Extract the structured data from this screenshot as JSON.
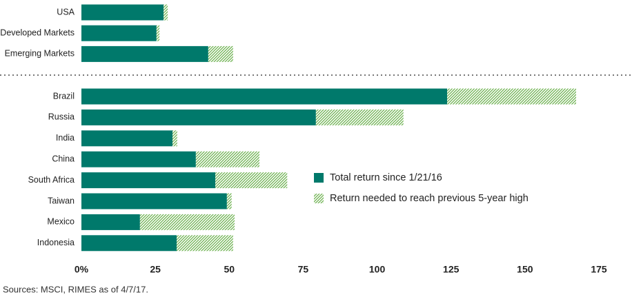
{
  "chart_data": {
    "type": "stacked-barh",
    "categories": [
      "USA",
      "Developed Markets",
      "Emerging Markets",
      "Brazil",
      "Russia",
      "India",
      "China",
      "South Africa",
      "Taiwan",
      "Mexico",
      "Indonesia"
    ],
    "series": [
      {
        "name": "Total return since 1/21/16",
        "color": "#00796b",
        "values": [
          27.8,
          25.4,
          42.9,
          123.7,
          79.3,
          30.8,
          38.7,
          45.3,
          49.2,
          19.8,
          32.2
        ]
      },
      {
        "name": "Return needed to reach previous 5-year high",
        "color": "#7cc242",
        "values": [
          1.4,
          1.0,
          8.4,
          43.6,
          29.6,
          1.6,
          21.5,
          24.3,
          1.6,
          32.0,
          19.1
        ]
      }
    ],
    "xlim": [
      0,
      175
    ],
    "xticks": [
      {
        "value": 0,
        "label": "0%"
      },
      25,
      50,
      75,
      100,
      125,
      150,
      175
    ],
    "source": "Sources: MSCI, RIMES as of 4/7/17."
  }
}
